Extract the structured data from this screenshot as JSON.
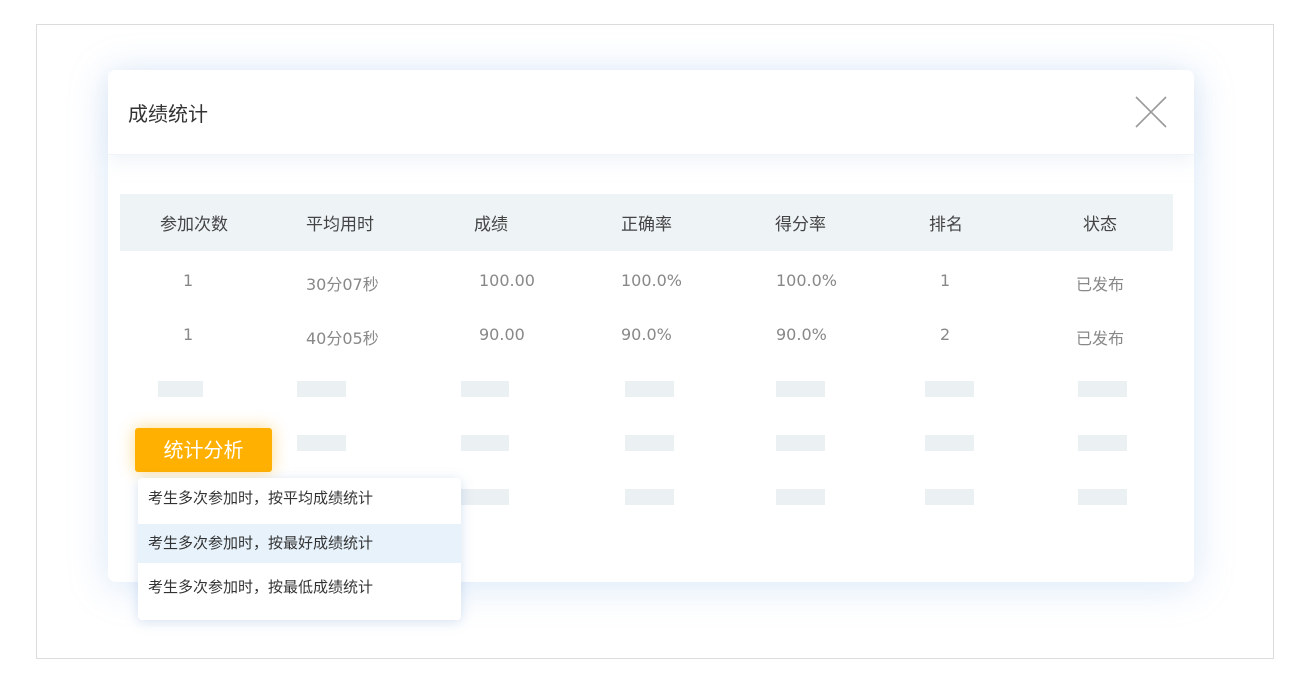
{
  "dialog": {
    "title": "成绩统计",
    "close_icon": "close-icon"
  },
  "table": {
    "headers": [
      "参加次数",
      "平均用时",
      "成绩",
      "正确率",
      "得分率",
      "排名",
      "状态"
    ],
    "rows": [
      [
        "1",
        "30分07秒",
        "100.00",
        "100.0%",
        "100.0%",
        "1",
        "已发布"
      ],
      [
        "1",
        "40分05秒",
        "90.00",
        "90.0%",
        "90.0%",
        "2",
        "已发布"
      ]
    ]
  },
  "analysis": {
    "button_label": "统计分析",
    "button_color": "#FFB000",
    "options": [
      "考生多次参加时，按平均成绩统计",
      "考生多次参加时，按最好成绩统计",
      "考生多次参加时，按最低成绩统计"
    ],
    "highlighted_index": 1
  }
}
